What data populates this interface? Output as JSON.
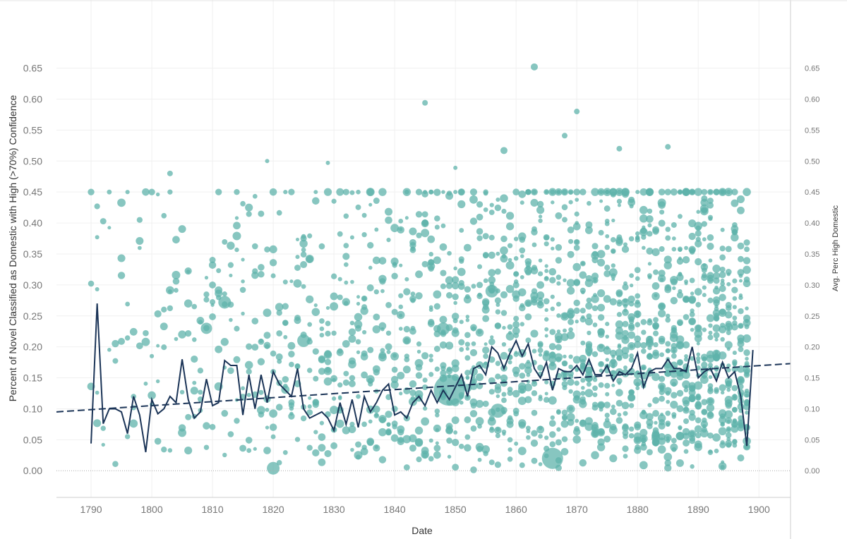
{
  "chart_data": {
    "type": "scatter",
    "xlabel": "Date",
    "ylabel": "Percent of Novel Classified as Domestic with High (>70%) Confidence",
    "y2label": "Avg. Perc High Domestic",
    "xlim": [
      1784.3,
      1905.2
    ],
    "ylim": [
      -0.043,
      0.76
    ],
    "xticks": [
      "1790",
      "1800",
      "1810",
      "1820",
      "1830",
      "1840",
      "1850",
      "1860",
      "1870",
      "1880",
      "1890",
      "1900"
    ],
    "yticks": [
      "0.00",
      "0.05",
      "0.10",
      "0.15",
      "0.20",
      "0.25",
      "0.30",
      "0.35",
      "0.40",
      "0.45",
      "0.50",
      "0.55",
      "0.60",
      "0.65"
    ],
    "grid": true,
    "colors": {
      "points": "#5fb3ab",
      "line": "#1b3457",
      "trend": "#1b3457"
    },
    "notable_points": [
      {
        "x": 1863,
        "y": 0.652,
        "r": 5
      },
      {
        "x": 1845,
        "y": 0.594,
        "r": 4
      },
      {
        "x": 1870,
        "y": 0.58,
        "r": 4
      },
      {
        "x": 1868,
        "y": 0.541,
        "r": 4
      },
      {
        "x": 1858,
        "y": 0.517,
        "r": 5
      },
      {
        "x": 1877,
        "y": 0.52,
        "r": 4
      },
      {
        "x": 1885,
        "y": 0.523,
        "r": 4
      },
      {
        "x": 1803,
        "y": 0.48,
        "r": 4
      },
      {
        "x": 1819,
        "y": 0.5,
        "r": 3
      },
      {
        "x": 1829,
        "y": 0.497,
        "r": 3
      },
      {
        "x": 1850,
        "y": 0.489,
        "r": 3
      },
      {
        "x": 1791,
        "y": 0.377,
        "r": 3
      },
      {
        "x": 1791,
        "y": 0.293,
        "r": 3
      },
      {
        "x": 1812,
        "y": 0.272,
        "r": 9
      },
      {
        "x": 1825,
        "y": 0.21,
        "r": 9
      },
      {
        "x": 1849,
        "y": 0.13,
        "r": 22
      },
      {
        "x": 1866,
        "y": 0.02,
        "r": 15
      },
      {
        "x": 1856,
        "y": 0.29,
        "r": 9
      },
      {
        "x": 1809,
        "y": 0.23,
        "r": 8
      },
      {
        "x": 1814,
        "y": 0.379,
        "r": 6
      },
      {
        "x": 1826,
        "y": 0.342,
        "r": 6
      },
      {
        "x": 1857,
        "y": 0.097,
        "r": 10
      },
      {
        "x": 1820,
        "y": 0.004,
        "r": 9
      },
      {
        "x": 1848,
        "y": 0.229,
        "r": 9
      }
    ],
    "annual_avg": {
      "x_start": 1790,
      "values": [
        0.044,
        0.27,
        0.076,
        0.1,
        0.1,
        0.095,
        0.06,
        0.12,
        0.09,
        0.03,
        0.115,
        0.092,
        0.1,
        0.12,
        0.11,
        0.18,
        0.115,
        0.085,
        0.095,
        0.148,
        0.105,
        0.11,
        0.178,
        0.17,
        0.17,
        0.09,
        0.155,
        0.1,
        0.155,
        0.11,
        0.16,
        0.14,
        0.13,
        0.12,
        0.165,
        0.1,
        0.085,
        0.09,
        0.095,
        0.085,
        0.065,
        0.11,
        0.075,
        0.115,
        0.07,
        0.12,
        0.095,
        0.11,
        0.13,
        0.14,
        0.09,
        0.095,
        0.085,
        0.11,
        0.12,
        0.105,
        0.13,
        0.11,
        0.13,
        0.115,
        0.135,
        0.155,
        0.12,
        0.165,
        0.17,
        0.155,
        0.2,
        0.19,
        0.165,
        0.19,
        0.21,
        0.185,
        0.205,
        0.165,
        0.15,
        0.175,
        0.13,
        0.165,
        0.16,
        0.16,
        0.17,
        0.155,
        0.18,
        0.155,
        0.155,
        0.17,
        0.145,
        0.16,
        0.155,
        0.165,
        0.19,
        0.135,
        0.16,
        0.165,
        0.165,
        0.18,
        0.165,
        0.165,
        0.16,
        0.2,
        0.15,
        0.16,
        0.165,
        0.145,
        0.175,
        0.15,
        0.16,
        0.12,
        0.04,
        0.195
      ]
    },
    "trend": {
      "x": [
        1784.3,
        1905.2
      ],
      "y": [
        0.095,
        0.173
      ]
    }
  }
}
